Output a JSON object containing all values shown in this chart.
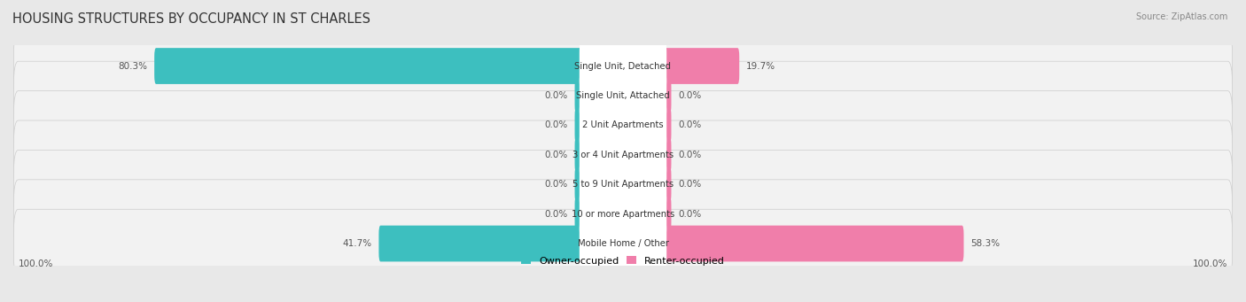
{
  "title": "HOUSING STRUCTURES BY OCCUPANCY IN ST CHARLES",
  "source": "Source: ZipAtlas.com",
  "categories": [
    "Single Unit, Detached",
    "Single Unit, Attached",
    "2 Unit Apartments",
    "3 or 4 Unit Apartments",
    "5 to 9 Unit Apartments",
    "10 or more Apartments",
    "Mobile Home / Other"
  ],
  "owner_pct": [
    80.3,
    0.0,
    0.0,
    0.0,
    0.0,
    0.0,
    41.7
  ],
  "renter_pct": [
    19.7,
    0.0,
    0.0,
    0.0,
    0.0,
    0.0,
    58.3
  ],
  "owner_color": "#3DBFBF",
  "renter_color": "#F07EAA",
  "bg_color": "#E8E8E8",
  "row_bg_color": "#F2F2F2",
  "label_color": "#555555",
  "title_color": "#333333",
  "figsize": [
    14.06,
    3.41
  ],
  "dpi": 100,
  "stub_size": 8.0,
  "xlim": 105,
  "bar_height": 0.62
}
